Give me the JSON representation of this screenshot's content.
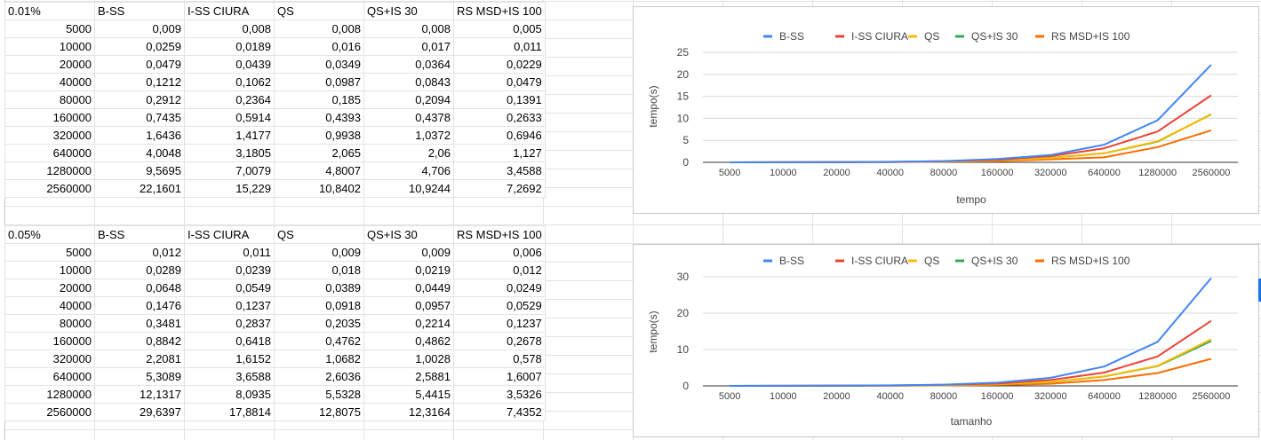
{
  "columns": [
    "B-SS",
    "I-SS CIURA",
    "QS",
    "QS+IS 30",
    "RS MSD+IS 100"
  ],
  "tables": [
    {
      "label": "0.01%",
      "rows": [
        [
          "5000",
          "0,009",
          "0,008",
          "0,008",
          "0,008",
          "0,005"
        ],
        [
          "10000",
          "0,0259",
          "0,0189",
          "0,016",
          "0,017",
          "0,011"
        ],
        [
          "20000",
          "0,0479",
          "0,0439",
          "0,0349",
          "0,0364",
          "0,0229"
        ],
        [
          "40000",
          "0,1212",
          "0,1062",
          "0,0987",
          "0,0843",
          "0,0479"
        ],
        [
          "80000",
          "0,2912",
          "0,2364",
          "0,185",
          "0,2094",
          "0,1391"
        ],
        [
          "160000",
          "0,7435",
          "0,5914",
          "0,4393",
          "0,4378",
          "0,2633"
        ],
        [
          "320000",
          "1,6436",
          "1,4177",
          "0,9938",
          "1,0372",
          "0,6946"
        ],
        [
          "640000",
          "4,0048",
          "3,1805",
          "2,065",
          "2,06",
          "1,127"
        ],
        [
          "1280000",
          "9,5695",
          "7,0079",
          "4,8007",
          "4,706",
          "3,4588"
        ],
        [
          "2560000",
          "22,1601",
          "15,229",
          "10,8402",
          "10,9244",
          "7,2692"
        ]
      ]
    },
    {
      "label": "0.05%",
      "rows": [
        [
          "5000",
          "0,012",
          "0,011",
          "0,009",
          "0,009",
          "0,006"
        ],
        [
          "10000",
          "0,0289",
          "0,0239",
          "0,018",
          "0,0219",
          "0,012"
        ],
        [
          "20000",
          "0,0648",
          "0,0549",
          "0,0389",
          "0,0449",
          "0,0249"
        ],
        [
          "40000",
          "0,1476",
          "0,1237",
          "0,0918",
          "0,0957",
          "0,0529"
        ],
        [
          "80000",
          "0,3481",
          "0,2837",
          "0,2035",
          "0,2214",
          "0,1237"
        ],
        [
          "160000",
          "0,8842",
          "0,6418",
          "0,4762",
          "0,4862",
          "0,2678"
        ],
        [
          "320000",
          "2,2081",
          "1,6152",
          "1,0682",
          "1,0028",
          "0,578"
        ],
        [
          "640000",
          "5,3089",
          "3,6588",
          "2,6036",
          "2,5881",
          "1,6007"
        ],
        [
          "1280000",
          "12,1317",
          "8,0935",
          "5,5328",
          "5,4415",
          "3,5326"
        ],
        [
          "2560000",
          "29,6397",
          "17,8814",
          "12,8075",
          "12,3164",
          "7,4352"
        ]
      ]
    }
  ],
  "chart_data": [
    {
      "type": "line",
      "title": "",
      "xlabel": "tempo",
      "ylabel": "tempo(s)",
      "legend": "top",
      "grid": true,
      "ylim": [
        0,
        25
      ],
      "yticks": [
        0,
        5,
        10,
        15,
        20,
        25
      ],
      "categories": [
        "5000",
        "10000",
        "20000",
        "40000",
        "80000",
        "160000",
        "320000",
        "640000",
        "1280000",
        "2560000"
      ],
      "series": [
        {
          "name": "B-SS",
          "color": "#4285f4",
          "values": [
            0.009,
            0.0259,
            0.0479,
            0.1212,
            0.2912,
            0.7435,
            1.6436,
            4.0048,
            9.5695,
            22.1601
          ]
        },
        {
          "name": "I-SS CIURA",
          "color": "#ea4335",
          "values": [
            0.008,
            0.0189,
            0.0439,
            0.1062,
            0.2364,
            0.5914,
            1.4177,
            3.1805,
            7.0079,
            15.229
          ]
        },
        {
          "name": "QS",
          "color": "#fbbc04",
          "values": [
            0.008,
            0.016,
            0.0349,
            0.0987,
            0.185,
            0.4393,
            0.9938,
            2.065,
            4.8007,
            10.8402
          ]
        },
        {
          "name": "QS+IS 30",
          "color": "#34a853",
          "values": [
            0.008,
            0.017,
            0.0364,
            0.0843,
            0.2094,
            0.4378,
            1.0372,
            2.06,
            4.706,
            10.9244
          ]
        },
        {
          "name": "RS MSD+IS 100",
          "color": "#ff6d01",
          "values": [
            0.005,
            0.011,
            0.0229,
            0.0479,
            0.1391,
            0.2633,
            0.6946,
            1.127,
            3.4588,
            7.2692
          ]
        }
      ]
    },
    {
      "type": "line",
      "title": "",
      "xlabel": "tamanho",
      "ylabel": "tempo(s)",
      "legend": "top",
      "grid": true,
      "ylim": [
        0,
        30
      ],
      "yticks": [
        0,
        10,
        20,
        30
      ],
      "categories": [
        "5000",
        "10000",
        "20000",
        "40000",
        "80000",
        "160000",
        "320000",
        "640000",
        "1280000",
        "2560000"
      ],
      "series": [
        {
          "name": "B-SS",
          "color": "#4285f4",
          "values": [
            0.012,
            0.0289,
            0.0648,
            0.1476,
            0.3481,
            0.8842,
            2.2081,
            5.3089,
            12.1317,
            29.6397
          ]
        },
        {
          "name": "I-SS CIURA",
          "color": "#ea4335",
          "values": [
            0.011,
            0.0239,
            0.0549,
            0.1237,
            0.2837,
            0.6418,
            1.6152,
            3.6588,
            8.0935,
            17.8814
          ]
        },
        {
          "name": "QS",
          "color": "#fbbc04",
          "values": [
            0.009,
            0.018,
            0.0389,
            0.0918,
            0.2035,
            0.4762,
            1.0682,
            2.6036,
            5.5328,
            12.8075
          ]
        },
        {
          "name": "QS+IS 30",
          "color": "#34a853",
          "values": [
            0.009,
            0.0219,
            0.0449,
            0.0957,
            0.2214,
            0.4862,
            1.0028,
            2.5881,
            5.4415,
            12.3164
          ]
        },
        {
          "name": "RS MSD+IS 100",
          "color": "#ff6d01",
          "values": [
            0.006,
            0.012,
            0.0249,
            0.0529,
            0.1237,
            0.2678,
            0.578,
            1.6007,
            3.5326,
            7.4352
          ]
        }
      ]
    }
  ]
}
